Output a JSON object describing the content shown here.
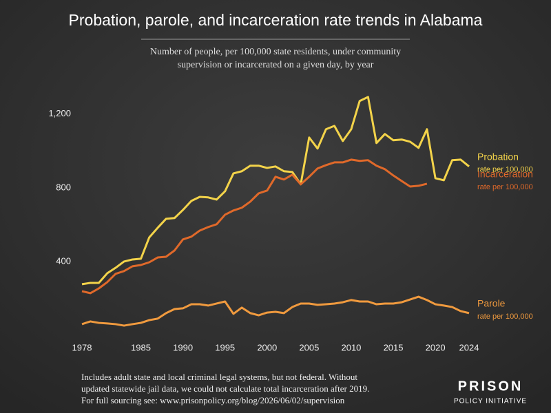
{
  "chart_data": {
    "type": "line",
    "title": "Probation, parole, and incarceration rate trends in Alabama",
    "subtitle": [
      "Number of people, per 100,000 state residents, under community",
      "supervision or incarcerated on a given day, by year"
    ],
    "label_suffix": "rate per 100,000",
    "x": [
      1978,
      1979,
      1980,
      1981,
      1982,
      1983,
      1984,
      1985,
      1986,
      1987,
      1988,
      1989,
      1990,
      1991,
      1992,
      1993,
      1994,
      1995,
      1996,
      1997,
      1998,
      1999,
      2000,
      2001,
      2002,
      2003,
      2004,
      2005,
      2006,
      2007,
      2008,
      2009,
      2010,
      2011,
      2012,
      2013,
      2014,
      2015,
      2016,
      2017,
      2018,
      2019,
      2020,
      2021,
      2022,
      2023,
      2024
    ],
    "xlim": [
      1978,
      2024
    ],
    "xticks": [
      1978,
      1985,
      1990,
      1995,
      2000,
      2005,
      2010,
      2015,
      2020,
      2024
    ],
    "ylim": [
      0,
      1300
    ],
    "yticks": [
      400,
      800,
      {
        "value": 1200,
        "label": "1,200"
      }
    ],
    "grid": false,
    "series": [
      {
        "name": "Probation",
        "color": "#f3d34a",
        "values": [
          277,
          284,
          284,
          336,
          366,
          400,
          411,
          415,
          531,
          583,
          632,
          636,
          680,
          729,
          751,
          748,
          736,
          781,
          878,
          890,
          920,
          920,
          908,
          916,
          890,
          886,
          819,
          1073,
          1013,
          1118,
          1136,
          1054,
          1118,
          1271,
          1293,
          1043,
          1092,
          1058,
          1062,
          1050,
          1017,
          1118,
          852,
          841,
          950,
          953,
          916
        ]
      },
      {
        "name": "Incarceration",
        "color": "#e0692a",
        "values": [
          239,
          228,
          254,
          288,
          333,
          348,
          374,
          381,
          396,
          422,
          426,
          460,
          520,
          535,
          568,
          587,
          602,
          654,
          677,
          692,
          725,
          770,
          785,
          860,
          845,
          871,
          819,
          860,
          905,
          923,
          938,
          938,
          953,
          946,
          950,
          920,
          901,
          867,
          837,
          807,
          811,
          822,
          null,
          null,
          null,
          null,
          null
        ]
      },
      {
        "name": "Parole",
        "color": "#f09a3e",
        "values": [
          60,
          75,
          67,
          64,
          60,
          52,
          60,
          67,
          82,
          90,
          120,
          142,
          146,
          168,
          168,
          161,
          172,
          183,
          116,
          150,
          120,
          108,
          123,
          127,
          120,
          153,
          172,
          172,
          165,
          168,
          172,
          179,
          191,
          183,
          183,
          168,
          172,
          172,
          179,
          194,
          209,
          191,
          168,
          161,
          153,
          131,
          120
        ]
      }
    ],
    "footnote": [
      "Includes adult state and local criminal legal systems, but not federal. Without",
      "updated statewide jail data, we could not calculate total incarceration after 2019.",
      "For full sourcing see: www.prisonpolicy.org/blog/2026/06/02/supervision"
    ],
    "brand": [
      "PRISON",
      "POLICY INITIATIVE"
    ]
  }
}
